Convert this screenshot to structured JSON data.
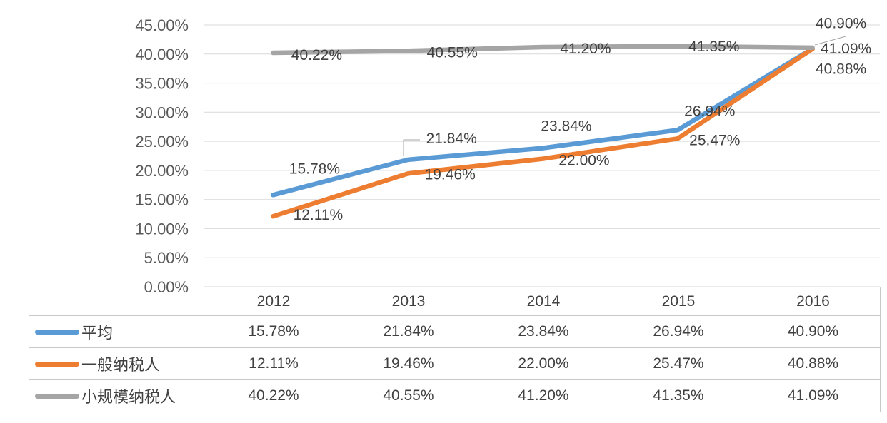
{
  "chart_data": {
    "type": "line",
    "categories": [
      "2012",
      "2013",
      "2014",
      "2015",
      "2016"
    ],
    "series": [
      {
        "name": "平均",
        "color": "#5B9BD5",
        "values": [
          15.78,
          21.84,
          23.84,
          26.94,
          40.9
        ],
        "labels": [
          "15.78%",
          "21.84%",
          "23.84%",
          "26.94%",
          "40.90%"
        ]
      },
      {
        "name": "一般纳税人",
        "color": "#ED7D31",
        "values": [
          12.11,
          19.46,
          22.0,
          25.47,
          40.88
        ],
        "labels": [
          "12.11%",
          "19.46%",
          "22.00%",
          "25.47%",
          "40.88%"
        ]
      },
      {
        "name": "小规模纳税人",
        "color": "#A5A5A5",
        "values": [
          40.22,
          40.55,
          41.2,
          41.35,
          41.09
        ],
        "labels": [
          "40.22%",
          "40.55%",
          "41.20%",
          "41.35%",
          "41.09%"
        ]
      }
    ],
    "title": "",
    "xlabel": "",
    "ylabel": "",
    "ylim": [
      0,
      45
    ],
    "ytick_step": 5,
    "yticks": [
      "0.00%",
      "5.00%",
      "10.00%",
      "15.00%",
      "20.00%",
      "25.00%",
      "30.00%",
      "35.00%",
      "40.00%",
      "45.00%"
    ],
    "grid": true,
    "legend_position": "table-left"
  },
  "table": {
    "col_headers": [
      "2012",
      "2013",
      "2014",
      "2015",
      "2016"
    ],
    "rows": [
      {
        "label": "平均",
        "values": [
          "15.78%",
          "21.84%",
          "23.84%",
          "26.94%",
          "40.90%"
        ]
      },
      {
        "label": "一般纳税人",
        "values": [
          "12.11%",
          "19.46%",
          "22.00%",
          "25.47%",
          "40.88%"
        ]
      },
      {
        "label": "小规模纳税人",
        "values": [
          "40.22%",
          "40.55%",
          "41.20%",
          "41.35%",
          "41.09%"
        ]
      }
    ]
  },
  "colors": {
    "series_blue": "#5B9BD5",
    "series_orange": "#ED7D31",
    "series_gray": "#A5A5A5",
    "gridline": "#D9D9D9",
    "table_border": "#C9C9C9",
    "label_text": "#404040",
    "tick_text": "#595959",
    "leader_line": "#A6A6A6",
    "background": "#FFFFFF"
  }
}
